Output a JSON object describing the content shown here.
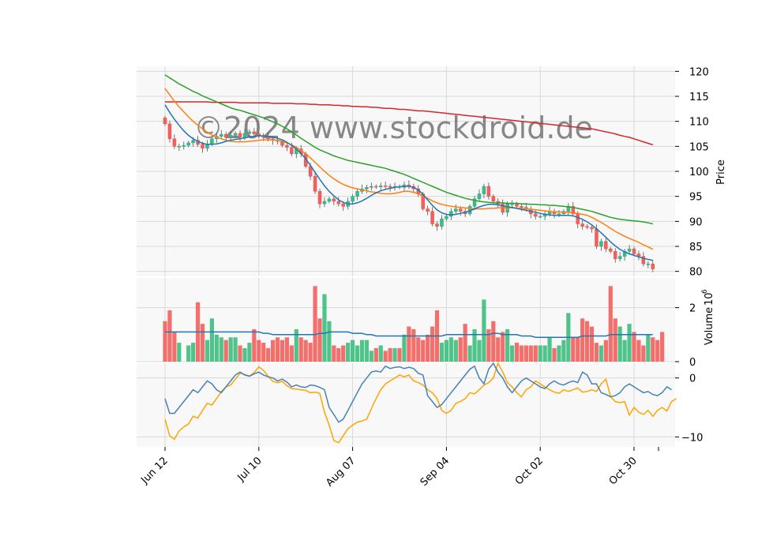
{
  "watermark": "©2024 www.stockdroid.de",
  "colors": {
    "up": "#26a69a",
    "up_fill": "#3dbd7d",
    "down": "#ef5350",
    "down_fill": "#f25f5c",
    "ma_short": "#1f77b4",
    "ma_mid": "#ff7f0e",
    "ma_long": "#2ca02c",
    "ma_200": "#d62728",
    "volume_ma": "#1f77b4",
    "osc_blue": "#4682b4",
    "osc_orange": "#ffa500",
    "panel_bg": "#f8f8f8",
    "grid": "#d9d9d9"
  },
  "chart_data": [
    {
      "type": "candlestick",
      "panel": "price",
      "ylabel": "Price",
      "ylim": [
        79,
        121
      ],
      "yticks": [
        "80",
        "85",
        "90",
        "95",
        "100",
        "105",
        "110",
        "115",
        "120"
      ],
      "ytick_values": [
        80,
        85,
        90,
        95,
        100,
        105,
        110,
        115,
        120
      ],
      "grid": true,
      "closes": [
        109.5,
        106.5,
        105.0,
        105.0,
        105.2,
        105.7,
        106.2,
        105.4,
        104.6,
        105.5,
        106.5,
        107.0,
        107.4,
        106.8,
        107.2,
        107.6,
        106.8,
        107.6,
        107.9,
        107.5,
        107.0,
        106.8,
        106.5,
        106.2,
        106.0,
        105.2,
        104.8,
        103.5,
        104.5,
        103.5,
        101.0,
        99.0,
        96.0,
        93.5,
        94.0,
        94.5,
        94.0,
        93.5,
        93.0,
        94.0,
        95.0,
        96.0,
        96.5,
        96.8,
        97.0,
        96.9,
        97.1,
        97.0,
        96.8,
        97.0,
        96.8,
        97.3,
        97.0,
        96.5,
        95.5,
        92.5,
        92.0,
        89.5,
        89.0,
        90.5,
        91.0,
        92.0,
        92.5,
        92.0,
        91.5,
        93.0,
        94.5,
        95.5,
        97.0,
        95.0,
        94.0,
        93.5,
        91.8,
        93.5,
        93.5,
        93.0,
        92.8,
        92.5,
        91.5,
        91.0,
        91.0,
        91.5,
        92.0,
        91.5,
        91.5,
        92.0,
        93.0,
        91.5,
        89.5,
        89.0,
        88.8,
        88.5,
        85.0,
        86.0,
        84.5,
        84.0,
        82.5,
        83.0,
        84.0,
        84.5,
        83.5,
        83.0,
        81.5,
        81.5,
        80.5
      ],
      "ma_short": [
        113.3,
        111.8,
        110.4,
        109.2,
        108.1,
        107.2,
        106.5,
        106.0,
        105.6,
        105.4,
        105.4,
        105.5,
        105.7,
        106.0,
        106.2,
        106.4,
        106.5,
        106.7,
        106.9,
        107.0,
        107.1,
        107.1,
        107.0,
        106.9,
        106.6,
        106.3,
        105.8,
        105.2,
        104.5,
        103.6,
        102.5,
        101.2,
        99.8,
        98.4,
        97.1,
        96.0,
        95.1,
        94.3,
        93.8,
        93.5,
        93.5,
        93.7,
        94.1,
        94.6,
        95.2,
        95.7,
        96.1,
        96.4,
        96.6,
        96.8,
        96.9,
        97.0,
        97.0,
        96.8,
        96.3,
        95.4,
        94.3,
        93.2,
        92.3,
        91.7,
        91.4,
        91.3,
        91.4,
        91.6,
        91.8,
        92.1,
        92.5,
        92.9,
        93.2,
        93.4,
        93.4,
        93.3,
        93.1,
        92.9,
        92.8,
        92.6,
        92.4,
        92.2,
        92.0,
        91.8,
        91.6,
        91.4,
        91.3,
        91.2,
        91.2,
        91.2,
        91.2,
        91.1,
        90.8,
        90.4,
        89.9,
        89.3,
        88.5,
        87.7,
        86.8,
        85.9,
        85.1,
        84.4,
        83.9,
        83.5,
        83.2,
        82.9,
        82.6,
        82.4,
        82.2
      ],
      "ma_mid": [
        116.6,
        115.3,
        114.0,
        112.9,
        111.9,
        110.9,
        110.0,
        109.2,
        108.5,
        107.8,
        107.3,
        106.8,
        106.5,
        106.2,
        106.0,
        105.9,
        105.9,
        105.9,
        106.0,
        106.1,
        106.2,
        106.3,
        106.3,
        106.3,
        106.2,
        106.0,
        105.7,
        105.3,
        104.8,
        104.2,
        103.5,
        102.7,
        101.8,
        100.9,
        100.0,
        99.2,
        98.5,
        97.9,
        97.4,
        97.0,
        96.7,
        96.5,
        96.3,
        96.1,
        95.9,
        95.8,
        95.6,
        95.5,
        95.5,
        95.6,
        95.8,
        96.0,
        96.0,
        95.8,
        95.5,
        95.1,
        94.6,
        94.1,
        93.7,
        93.4,
        93.2,
        93.0,
        92.9,
        92.8,
        92.7,
        92.6,
        92.5,
        92.5,
        92.5,
        92.6,
        92.6,
        92.7,
        92.7,
        92.7,
        92.7,
        92.6,
        92.6,
        92.5,
        92.4,
        92.3,
        92.2,
        92.1,
        92.0,
        91.9,
        91.9,
        91.8,
        91.8,
        91.7,
        91.6,
        91.4,
        91.2,
        90.8,
        90.3,
        89.8,
        89.2,
        88.6,
        88.0,
        87.5,
        87.0,
        86.6,
        86.2,
        85.8,
        85.3,
        84.9,
        84.4
      ],
      "ma_long": [
        119.3,
        118.7,
        118.1,
        117.5,
        117.0,
        116.5,
        116.0,
        115.6,
        115.1,
        114.7,
        114.3,
        113.9,
        113.5,
        113.1,
        112.7,
        112.4,
        112.2,
        111.9,
        111.6,
        111.3,
        111.0,
        110.7,
        110.3,
        109.9,
        109.5,
        109.0,
        108.5,
        107.9,
        107.3,
        106.6,
        106.0,
        105.4,
        104.8,
        104.3,
        103.9,
        103.5,
        103.1,
        102.8,
        102.5,
        102.2,
        102.0,
        101.8,
        101.6,
        101.4,
        101.2,
        101.0,
        100.8,
        100.6,
        100.3,
        100.0,
        99.7,
        99.4,
        99.0,
        98.6,
        98.2,
        97.8,
        97.4,
        97.0,
        96.6,
        96.2,
        95.8,
        95.5,
        95.2,
        94.9,
        94.6,
        94.4,
        94.2,
        94.0,
        93.9,
        93.8,
        93.7,
        93.7,
        93.7,
        93.6,
        93.6,
        93.6,
        93.5,
        93.5,
        93.4,
        93.4,
        93.3,
        93.3,
        93.2,
        93.2,
        93.1,
        93.0,
        92.9,
        92.8,
        92.6,
        92.4,
        92.2,
        92.0,
        91.7,
        91.4,
        91.1,
        90.8,
        90.6,
        90.4,
        90.3,
        90.2,
        90.1,
        90.0,
        89.9,
        89.7,
        89.5
      ],
      "ma_200": [
        113.9,
        113.9,
        113.9,
        113.9,
        113.9,
        113.9,
        113.9,
        113.9,
        113.9,
        113.9,
        113.8,
        113.8,
        113.8,
        113.8,
        113.8,
        113.8,
        113.7,
        113.7,
        113.7,
        113.7,
        113.7,
        113.7,
        113.7,
        113.6,
        113.6,
        113.6,
        113.6,
        113.6,
        113.5,
        113.5,
        113.5,
        113.4,
        113.4,
        113.3,
        113.3,
        113.3,
        113.2,
        113.2,
        113.1,
        113.1,
        113.0,
        113.0,
        112.9,
        112.9,
        112.8,
        112.8,
        112.7,
        112.6,
        112.6,
        112.5,
        112.4,
        112.4,
        112.3,
        112.2,
        112.1,
        112.1,
        112.0,
        111.9,
        111.8,
        111.7,
        111.6,
        111.5,
        111.4,
        111.3,
        111.2,
        111.1,
        111.0,
        110.9,
        110.8,
        110.7,
        110.6,
        110.5,
        110.4,
        110.3,
        110.2,
        110.1,
        110.0,
        109.9,
        109.8,
        109.7,
        109.6,
        109.5,
        109.4,
        109.3,
        109.2,
        109.1,
        109.0,
        108.9,
        108.8,
        108.7,
        108.6,
        108.5,
        108.3,
        108.1,
        107.9,
        107.7,
        107.5,
        107.2,
        107.0,
        106.8,
        106.5,
        106.2,
        105.9,
        105.6,
        105.3
      ]
    },
    {
      "type": "bar",
      "panel": "volume",
      "ylabel": "Volume  10^6",
      "ylabel_main": "Volume",
      "ylabel_exp": "10",
      "ylabel_pow": "6",
      "ylim": [
        0,
        3.1
      ],
      "yticks": [
        "0",
        "2"
      ],
      "ytick_values": [
        0,
        2
      ],
      "values": [
        1.5,
        1.9,
        1.1,
        0.7,
        0.0,
        0.6,
        0.7,
        2.2,
        1.4,
        0.8,
        1.6,
        1.0,
        0.9,
        0.8,
        0.9,
        0.9,
        0.6,
        0.5,
        0.7,
        1.2,
        0.8,
        0.7,
        0.5,
        0.8,
        0.9,
        0.8,
        0.9,
        0.6,
        1.2,
        0.9,
        0.8,
        0.7,
        2.8,
        1.6,
        2.5,
        1.5,
        0.6,
        0.5,
        0.6,
        0.7,
        0.8,
        0.6,
        0.8,
        0.8,
        0.4,
        0.5,
        0.6,
        0.4,
        0.5,
        0.5,
        0.5,
        1.0,
        1.3,
        1.2,
        0.9,
        0.8,
        1.0,
        1.3,
        1.9,
        0.7,
        0.8,
        0.9,
        0.8,
        0.9,
        1.4,
        0.6,
        1.2,
        0.8,
        2.3,
        1.2,
        1.5,
        0.9,
        1.1,
        1.2,
        0.6,
        0.7,
        0.6,
        0.6,
        0.6,
        0.6,
        0.6,
        0.6,
        0.9,
        0.5,
        0.6,
        0.8,
        1.8,
        0.9,
        0.9,
        1.6,
        1.5,
        1.3,
        0.7,
        0.6,
        0.8,
        2.8,
        1.6,
        1.3,
        0.8,
        1.4,
        1.1,
        0.8,
        0.6,
        1.0,
        0.9,
        0.8,
        1.1
      ],
      "volume_ma": [
        1.1,
        1.1,
        1.1,
        1.1,
        1.1,
        1.1,
        1.1,
        1.1,
        1.1,
        1.1,
        1.1,
        1.1,
        1.1,
        1.1,
        1.1,
        1.1,
        1.1,
        1.1,
        1.1,
        1.1,
        1.1,
        1.05,
        1.05,
        1.0,
        1.0,
        1.0,
        1.0,
        1.0,
        1.0,
        1.0,
        1.0,
        1.0,
        1.0,
        1.05,
        1.05,
        1.1,
        1.1,
        1.1,
        1.1,
        1.1,
        1.05,
        1.05,
        1.05,
        1.0,
        1.0,
        0.95,
        0.95,
        0.95,
        0.95,
        0.95,
        0.95,
        0.95,
        0.95,
        0.95,
        0.95,
        0.95,
        0.95,
        0.95,
        0.95,
        0.95,
        1.0,
        1.0,
        1.0,
        1.0,
        1.0,
        1.0,
        1.0,
        1.0,
        1.0,
        1.0,
        1.05,
        1.05,
        1.0,
        1.0,
        1.0,
        1.0,
        0.95,
        0.95,
        0.95,
        0.9,
        0.9,
        0.9,
        0.9,
        0.9,
        0.9,
        0.9,
        0.9,
        0.9,
        0.9,
        0.95,
        0.95,
        0.95,
        0.95,
        0.95,
        0.95,
        1.0,
        1.0,
        1.0,
        1.0,
        1.0,
        1.0,
        1.0,
        1.0,
        1.0,
        1.0
      ]
    },
    {
      "type": "line",
      "panel": "oscillator",
      "ylim": [
        -11.7,
        2.5
      ],
      "yticks": [
        "0",
        "−10"
      ],
      "ytick_values": [
        0,
        -10
      ],
      "series_blue": [
        -3.5,
        -6.0,
        -6.0,
        -5.0,
        -4.0,
        -3.0,
        -2.0,
        -2.5,
        -1.5,
        -0.5,
        -1.0,
        -2.0,
        -2.5,
        -1.5,
        -0.5,
        0.5,
        1.0,
        0.5,
        0.3,
        0.7,
        1.0,
        0.5,
        0.2,
        0.0,
        -0.5,
        -0.2,
        -0.7,
        -1.5,
        -1.2,
        -1.5,
        -1.6,
        -1.2,
        -1.3,
        -1.6,
        -2.0,
        -5.0,
        -6.2,
        -7.5,
        -7.0,
        -5.5,
        -4.0,
        -2.5,
        -1.0,
        0.0,
        1.0,
        1.2,
        1.0,
        2.0,
        1.6,
        1.8,
        1.9,
        1.6,
        1.8,
        1.6,
        0.8,
        0.5,
        -3.0,
        -4.0,
        -5.0,
        -4.5,
        -3.5,
        -2.5,
        -1.5,
        -0.5,
        0.5,
        1.5,
        2.0,
        0.0,
        -1.0,
        1.5,
        2.5,
        1.0,
        0.0,
        -1.5,
        -2.5,
        -1.5,
        -0.5,
        0.0,
        -0.5,
        -1.0,
        -1.5,
        -1.8,
        -1.0,
        -0.5,
        -1.0,
        -1.2,
        -0.8,
        -0.5,
        -0.8,
        1.0,
        0.5,
        -1.0,
        -1.0,
        -2.5,
        -2.8,
        -3.2,
        -3.0,
        -2.5,
        -1.5,
        -1.0,
        -1.5,
        -2.0,
        -2.5,
        -2.3,
        -2.8,
        -3.0,
        -2.5,
        -1.5,
        -2.0
      ],
      "series_orange": [
        -7.0,
        -9.8,
        -10.4,
        -9.0,
        -8.3,
        -7.8,
        -6.5,
        -6.8,
        -5.5,
        -4.3,
        -4.6,
        -3.5,
        -2.3,
        -1.5,
        -1.2,
        -0.2,
        0.8,
        0.6,
        0.3,
        0.9,
        1.9,
        1.3,
        0.3,
        -0.6,
        -0.8,
        -0.6,
        -1.3,
        -1.8,
        -1.9,
        -2.0,
        -2.1,
        -2.5,
        -2.4,
        -2.6,
        -5.8,
        -8.0,
        -10.6,
        -11.0,
        -9.8,
        -8.6,
        -8.0,
        -7.5,
        -7.3,
        -7.0,
        -5.2,
        -3.5,
        -2.0,
        -1.0,
        -0.5,
        0.0,
        0.5,
        0.2,
        0.5,
        -0.5,
        -0.8,
        -1.2,
        -2.0,
        -2.5,
        -3.5,
        -5.5,
        -6.0,
        -5.5,
        -4.3,
        -4.0,
        -3.5,
        -2.5,
        -2.7,
        -2.0,
        -1.2,
        -0.8,
        0.0,
        2.5,
        1.0,
        -0.8,
        -1.5,
        -2.5,
        -3.2,
        -2.0,
        -1.5,
        -0.5,
        -1.0,
        -1.5,
        -2.0,
        -2.4,
        -2.6,
        -2.0,
        -2.3,
        -2.0,
        -1.7,
        -2.4,
        -2.3,
        -2.0,
        -2.3,
        -1.0,
        -0.2,
        -3.2,
        -4.0,
        -4.2,
        -4.0,
        -6.3,
        -5.0,
        -5.8,
        -6.2,
        -5.5,
        -6.5,
        -5.5,
        -5.0,
        -5.6,
        -4.0,
        -3.5
      ],
      "hlines": [
        0,
        -10
      ]
    }
  ],
  "x_axis": {
    "tick_labels": [
      "Jun 12",
      "Jul 10",
      "Aug 07",
      "Sep 04",
      "Oct 02",
      "Oct 30"
    ],
    "tick_indices": [
      0,
      20,
      40,
      60,
      80,
      100
    ],
    "extra_tick_index": 120,
    "n_points": 105
  }
}
